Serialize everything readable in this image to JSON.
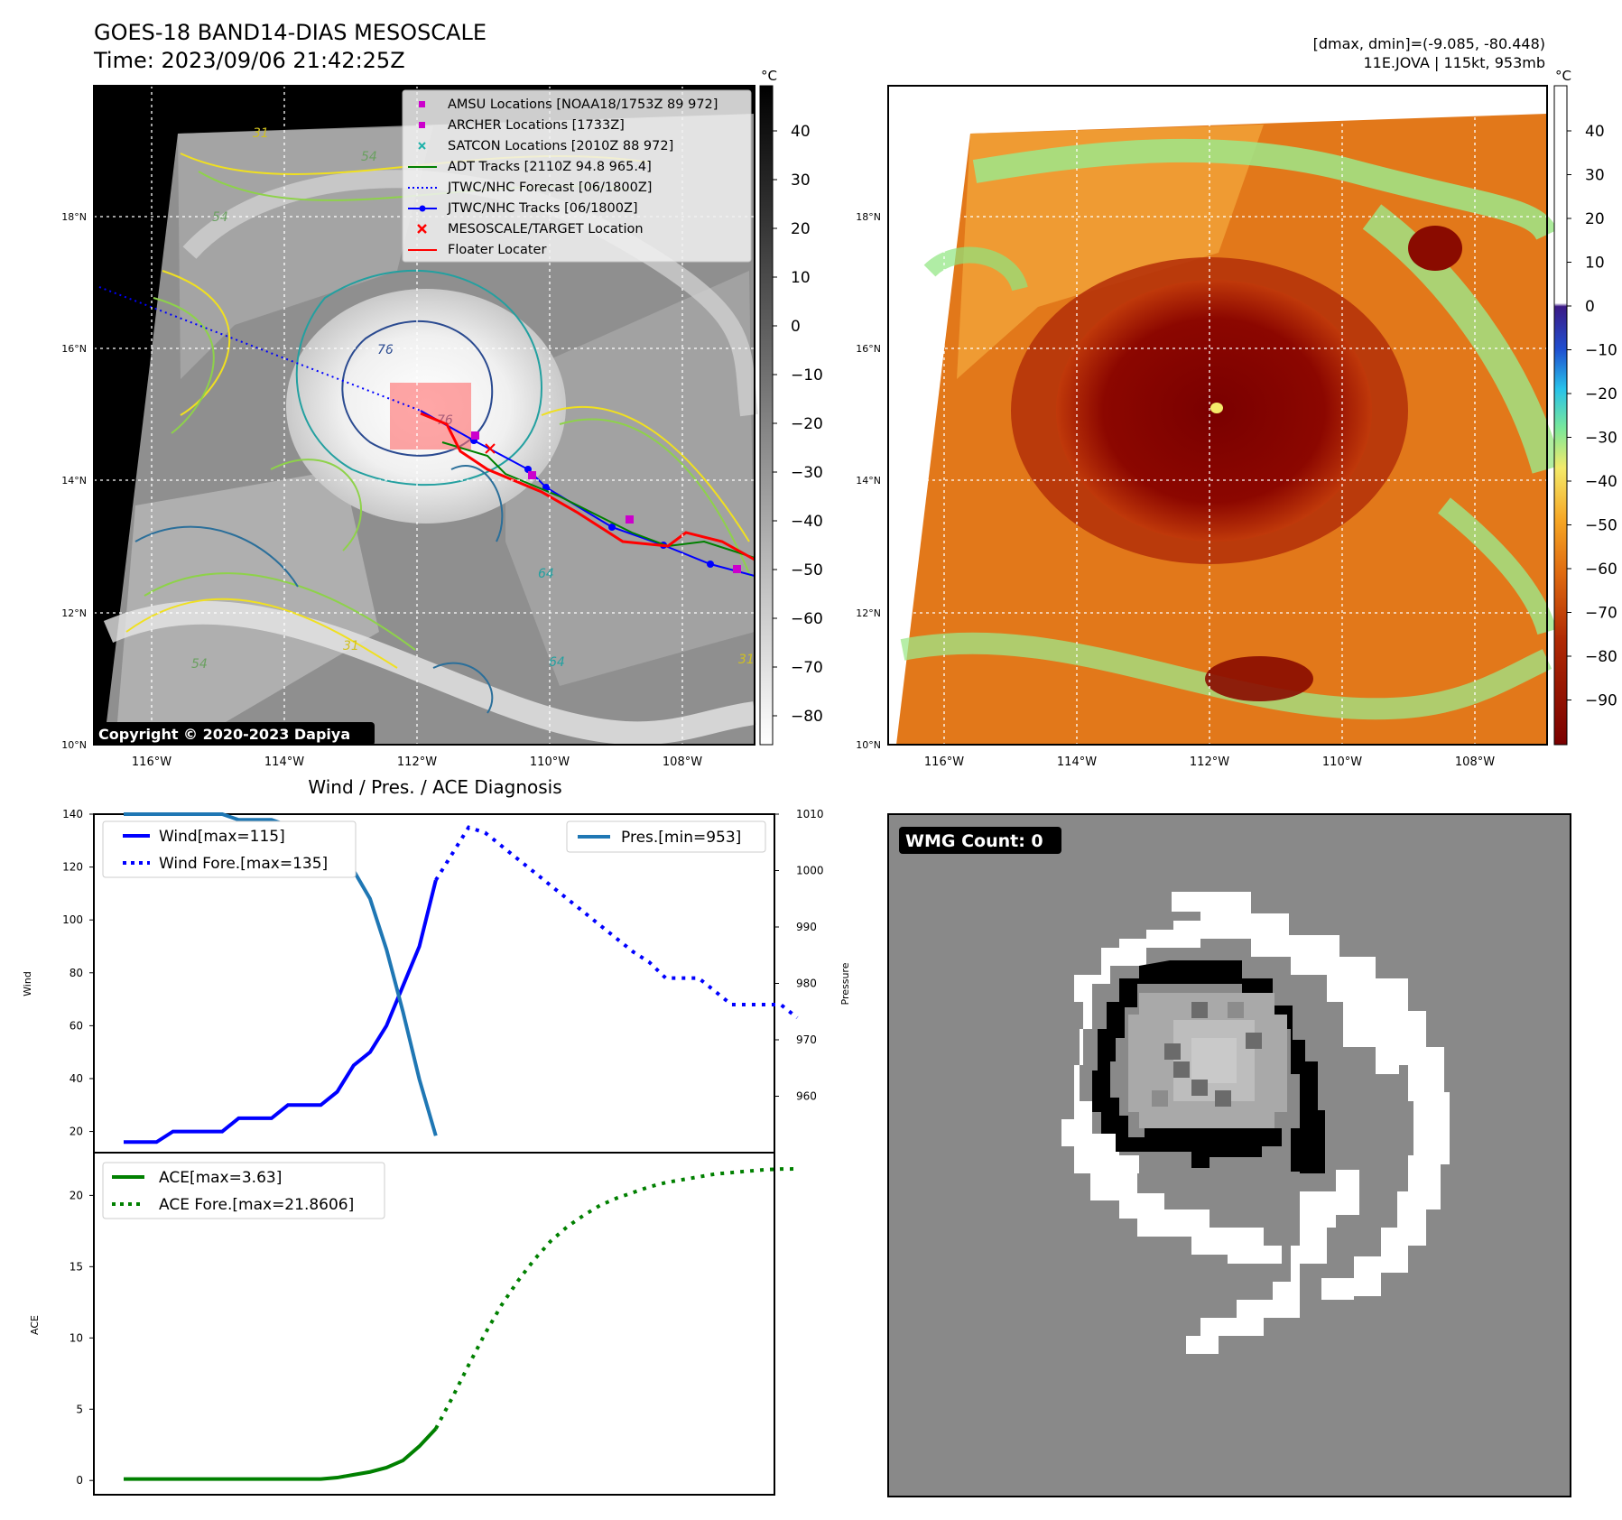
{
  "header": {
    "title_line1": "GOES-18 BAND14-DIAS MESOSCALE",
    "title_line2": "Time: 2023/09/06 21:42:25Z",
    "dmax_dmin": "[dmax, dmin]=(-9.085, -80.448)",
    "storm_info": "11E.JOVA | 115kt, 953mb"
  },
  "unit_label": "°C",
  "map_axes": {
    "lat_labels": [
      "18°N",
      "16°N",
      "14°N",
      "12°N",
      "10°N"
    ],
    "lon_labels": [
      "116°W",
      "114°W",
      "112°W",
      "110°W",
      "108°W"
    ]
  },
  "colorbar_left": {
    "ticks": [
      "40",
      "30",
      "20",
      "10",
      "0",
      "−10",
      "−20",
      "−30",
      "−40",
      "−50",
      "−60",
      "−70",
      "−80"
    ]
  },
  "colorbar_right": {
    "ticks": [
      "40",
      "30",
      "20",
      "10",
      "0",
      "−10",
      "−20",
      "−30",
      "−40",
      "−50",
      "−60",
      "−70",
      "−80",
      "−90"
    ]
  },
  "contour_labels": [
    "54",
    "31",
    "54",
    "76",
    "76",
    "64",
    "64",
    "31",
    "54",
    "31"
  ],
  "legend": {
    "items": [
      {
        "label": "AMSU Locations [NOAA18/1753Z 89 972]",
        "color": "#cc00cc",
        "marker": "square"
      },
      {
        "label": "ARCHER Locations [1733Z]",
        "color": "#cc00cc",
        "marker": "square"
      },
      {
        "label": "SATCON Locations [2010Z 88 972]",
        "color": "#20b2aa",
        "marker": "x"
      },
      {
        "label": "ADT Tracks [2110Z 94.8 965.4]",
        "color": "#008000",
        "marker": "line"
      },
      {
        "label": "JTWC/NHC Forecast [06/1800Z]",
        "color": "#0000ff",
        "marker": "dotted"
      },
      {
        "label": "JTWC/NHC Tracks [06/1800Z]",
        "color": "#0000ff",
        "marker": "line-dot"
      },
      {
        "label": "MESOSCALE/TARGET Location",
        "color": "#ff0000",
        "marker": "x"
      },
      {
        "label": "Floater Locater",
        "color": "#ff0000",
        "marker": "line"
      }
    ]
  },
  "copyright": "Copyright © 2020-2023 Dapiya",
  "wmg_label": "WMG Count: 0",
  "chart_data": [
    {
      "type": "line",
      "title": "Wind / Pres. / ACE Diagnosis",
      "ylabel": "Wind",
      "y2label": "Pressure",
      "ylim": [
        12,
        140
      ],
      "y2lim": [
        950,
        1010
      ],
      "yticks": [
        20,
        40,
        60,
        80,
        100,
        120,
        140
      ],
      "y2ticks": [
        960,
        970,
        980,
        990,
        1000,
        1010
      ],
      "legend_left": [
        "Wind[max=115]",
        "Wind Fore.[max=135]"
      ],
      "legend_right": [
        "Pres.[min=953]"
      ],
      "series": [
        {
          "name": "Wind[max=115]",
          "style": "solid",
          "color": "#0000ff",
          "values": [
            16,
            16,
            16,
            20,
            20,
            20,
            20,
            25,
            25,
            25,
            30,
            30,
            30,
            35,
            45,
            50,
            60,
            75,
            90,
            115
          ]
        },
        {
          "name": "Wind Fore.[max=135]",
          "style": "dotted",
          "color": "#0000ff",
          "values": [
            115,
            125,
            135,
            133,
            128,
            123,
            118,
            113,
            108,
            103,
            98,
            93,
            88,
            84,
            78,
            78,
            78,
            73,
            68,
            68,
            68,
            68,
            63
          ]
        },
        {
          "name": "Pres.[min=953]",
          "style": "solid",
          "color": "#1f77b4",
          "axis": "right",
          "values": [
            1010,
            1010,
            1010,
            1010,
            1010,
            1010,
            1010,
            1009,
            1009,
            1009,
            1008,
            1008,
            1006,
            1004,
            1000,
            995,
            986,
            975,
            963,
            953
          ]
        }
      ]
    },
    {
      "type": "line",
      "ylabel": "ACE",
      "ylim": [
        -1,
        23
      ],
      "yticks": [
        0,
        5,
        10,
        15,
        20
      ],
      "legend": [
        "ACE[max=3.63]",
        "ACE Fore.[max=21.8606]"
      ],
      "series": [
        {
          "name": "ACE[max=3.63]",
          "style": "solid",
          "color": "#008000",
          "values": [
            0.1,
            0.1,
            0.1,
            0.1,
            0.1,
            0.1,
            0.1,
            0.1,
            0.1,
            0.1,
            0.1,
            0.1,
            0.1,
            0.2,
            0.4,
            0.6,
            0.9,
            1.4,
            2.4,
            3.63
          ]
        },
        {
          "name": "ACE Fore.[max=21.8606]",
          "style": "dotted",
          "color": "#008000",
          "values": [
            3.63,
            5.8,
            8.1,
            10.3,
            12.3,
            14.0,
            15.5,
            16.8,
            17.8,
            18.6,
            19.3,
            19.8,
            20.2,
            20.6,
            20.9,
            21.1,
            21.3,
            21.5,
            21.6,
            21.7,
            21.8,
            21.85,
            21.86
          ]
        }
      ]
    }
  ]
}
